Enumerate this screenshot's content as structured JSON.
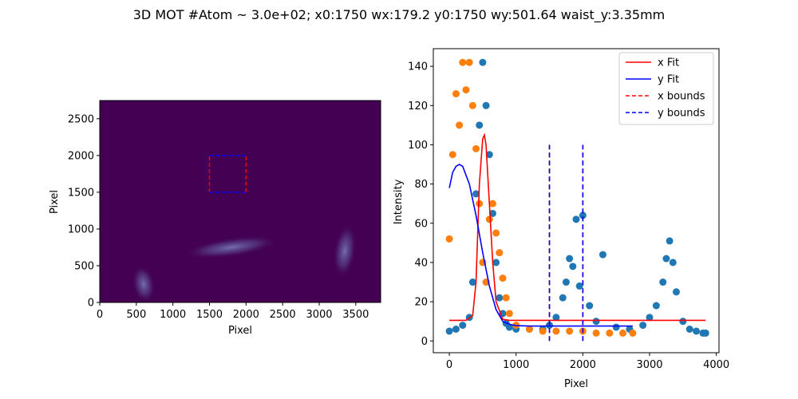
{
  "figure": {
    "suptitle": "3D MOT #Atom ~ 3.0e+02; x0:1750 wx:179.2 y0:1750 wy:501.64 waist_y:3.35mm"
  },
  "chart_data": [
    {
      "type": "heatmap",
      "xlabel": "Pixel",
      "ylabel": "Pixel",
      "xlim": [
        0,
        3840
      ],
      "ylim": [
        0,
        2748
      ],
      "xticks": [
        0,
        500,
        1000,
        1500,
        2000,
        2500,
        3000,
        3500
      ],
      "yticks": [
        0,
        500,
        1000,
        1500,
        2000,
        2500
      ],
      "background_color": "#440154",
      "roi": {
        "x": [
          1500,
          2000
        ],
        "y": [
          1500,
          2000
        ],
        "x_color": "#ff0000",
        "y_color": "#0000ff"
      },
      "bright_features": [
        {
          "x": 600,
          "y": 250
        },
        {
          "x": 1800,
          "y": 750
        },
        {
          "x": 3350,
          "y": 700
        }
      ]
    },
    {
      "type": "scatter",
      "xlabel": "Pixel",
      "ylabel": "Intensity",
      "xlim": [
        -240,
        4040
      ],
      "ylim": [
        -6,
        149
      ],
      "xticks": [
        0,
        1000,
        2000,
        3000,
        4000
      ],
      "yticks": [
        0,
        20,
        40,
        60,
        80,
        100,
        120,
        140
      ],
      "series": [
        {
          "color": "#1f77b4",
          "x": [
            0,
            100,
            200,
            300,
            350,
            400,
            450,
            500,
            550,
            600,
            650,
            700,
            750,
            800,
            850,
            900,
            1000,
            1200,
            1400,
            1500,
            1600,
            1700,
            1750,
            1800,
            1850,
            1900,
            1950,
            2000,
            2100,
            2200,
            2300,
            2500,
            2700,
            2900,
            3000,
            3100,
            3200,
            3250,
            3300,
            3350,
            3400,
            3500,
            3600,
            3700,
            3800,
            3840
          ],
          "y": [
            5,
            6,
            8,
            12,
            30,
            75,
            110,
            142,
            120,
            95,
            65,
            40,
            22,
            14,
            9,
            7,
            6,
            6,
            6,
            8,
            12,
            22,
            30,
            42,
            38,
            62,
            28,
            64,
            18,
            10,
            44,
            7,
            6,
            8,
            12,
            18,
            30,
            42,
            51,
            40,
            25,
            10,
            6,
            5,
            4,
            4
          ]
        },
        {
          "color": "#ff7f0e",
          "x": [
            0,
            50,
            100,
            150,
            200,
            250,
            300,
            350,
            400,
            450,
            500,
            550,
            600,
            650,
            700,
            750,
            800,
            850,
            900,
            1000,
            1200,
            1400,
            1600,
            1800,
            2000,
            2200,
            2400,
            2600,
            2748
          ],
          "y": [
            52,
            95,
            126,
            110,
            142,
            128,
            142,
            120,
            98,
            70,
            40,
            30,
            62,
            70,
            55,
            45,
            32,
            22,
            14,
            8,
            6,
            5,
            5,
            5,
            5,
            4,
            4,
            4,
            4
          ]
        }
      ],
      "lines": [
        {
          "name": "x Fit",
          "color": "#ff0000",
          "x": [
            0,
            250,
            350,
            400,
            450,
            500,
            525,
            550,
            600,
            650,
            700,
            800,
            900,
            1200,
            3840
          ],
          "y": [
            10.5,
            10.5,
            13,
            30,
            80,
            103,
            105,
            100,
            70,
            40,
            20,
            11,
            10.5,
            10.5,
            10.5
          ]
        },
        {
          "name": "y Fit",
          "color": "#0000ff",
          "x": [
            0,
            50,
            100,
            150,
            200,
            300,
            400,
            500,
            600,
            700,
            800,
            900,
            1000,
            1200,
            1500,
            2000,
            2748
          ],
          "y": [
            78,
            86,
            89,
            90,
            89,
            80,
            64,
            45,
            28,
            16,
            10,
            8.5,
            7.8,
            7.6,
            7.6,
            7.6,
            7.6
          ]
        }
      ],
      "bounds": [
        {
          "name": "x bounds",
          "color": "#ff0000",
          "x": [
            1500,
            2000
          ],
          "y": [
            0,
            100
          ]
        },
        {
          "name": "y bounds",
          "color": "#0000ff",
          "x": [
            1500,
            2000
          ],
          "y": [
            0,
            100
          ]
        }
      ],
      "legend": {
        "position": "top-right",
        "entries": [
          "x Fit",
          "y Fit",
          "x bounds",
          "y bounds"
        ]
      }
    }
  ]
}
